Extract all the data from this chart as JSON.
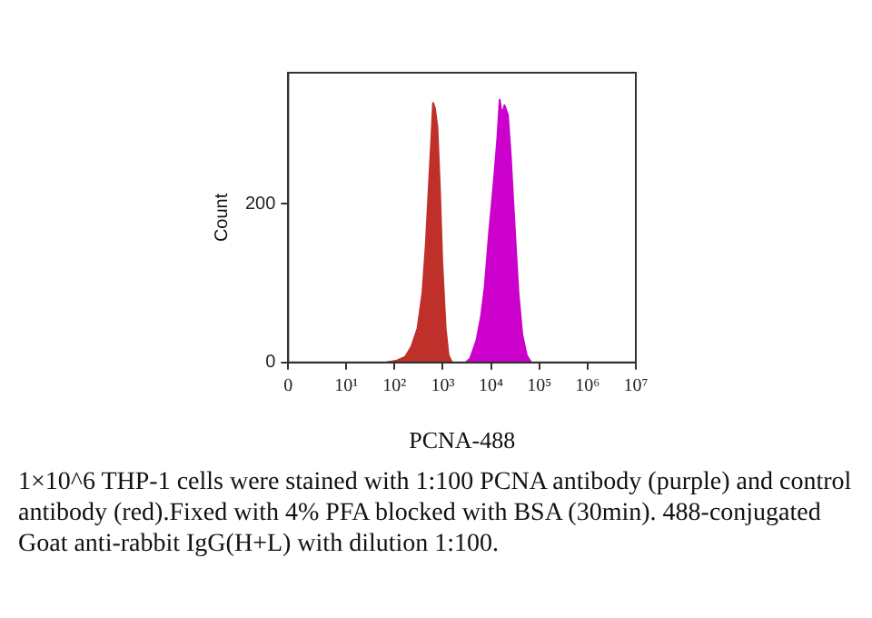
{
  "chart_data": {
    "type": "area",
    "xlabel": "PCNA-488",
    "ylabel": "Count",
    "log": "x",
    "xlim": [
      0,
      10000000
    ],
    "xticks": [
      0,
      {
        "value": 10,
        "label": "10¹"
      },
      {
        "value": 100,
        "label": "10²"
      },
      {
        "value": 1000,
        "label": "10³"
      },
      {
        "value": 10000,
        "label": "10⁴"
      },
      {
        "value": 100000,
        "label": "10⁵"
      },
      {
        "value": 1000000,
        "label": "10⁶"
      },
      {
        "value": 10000000,
        "label": "10⁷"
      }
    ],
    "ylim": [
      0,
      365
    ],
    "yticks": [
      0,
      200
    ],
    "grid": false,
    "legend": false,
    "marker": "none",
    "series": [
      {
        "color": "#c0302a",
        "x": [
          68,
          107,
          166,
          224,
          300,
          380,
          445,
          515,
          580,
          630,
          690,
          775,
          870,
          980,
          1150,
          1320,
          1550
        ],
        "values": [
          0,
          2,
          7,
          20,
          43,
          88,
          148,
          222,
          282,
          327,
          320,
          297,
          222,
          125,
          43,
          9,
          0
        ]
      },
      {
        "color": "#cc00cc",
        "x": [
          3000,
          3700,
          5000,
          6200,
          7400,
          9100,
          11200,
          13500,
          15100,
          17000,
          19000,
          22400,
          25700,
          30000,
          37000,
          44500,
          55000,
          67600
        ],
        "values": [
          0,
          5,
          28,
          58,
          95,
          163,
          222,
          282,
          331,
          312,
          324,
          312,
          260,
          185,
          88,
          35,
          9,
          0
        ]
      }
    ],
    "annotations": [
      "1×10^6  THP-1 cells were stained with 1:100 PCNA antibody (purple) and control antibody (red).Fixed with 4% PFA blocked with BSA (30min). 488-conjugated Goat anti-rabbit IgG(H+L) with dilution 1:100."
    ]
  }
}
